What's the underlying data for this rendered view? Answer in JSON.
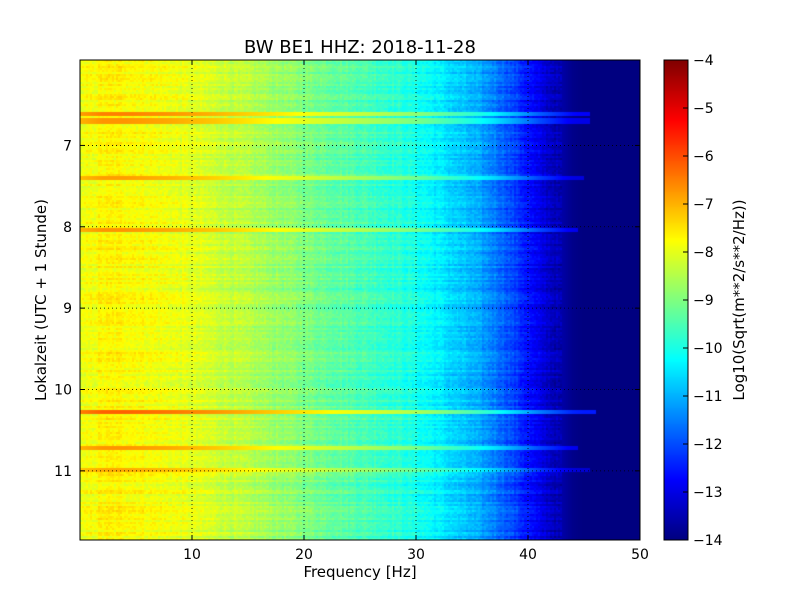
{
  "chart_data": {
    "type": "heatmap",
    "title": "BW BE1 HHZ: 2018-11-28",
    "xlabel": "Frequency [Hz]",
    "ylabel": "Lokalzeit (UTC + 1 Stunde)",
    "xlim": [
      0,
      50
    ],
    "ylim": [
      11.85,
      5.95
    ],
    "y_inverted": true,
    "x_ticks": [
      10,
      20,
      30,
      40,
      50
    ],
    "x_tick_labels": [
      "10",
      "20",
      "30",
      "40",
      "50"
    ],
    "y_ticks": [
      7,
      8,
      9,
      10,
      11
    ],
    "y_tick_labels": [
      "7",
      "8",
      "9",
      "10",
      "11"
    ],
    "grid": true,
    "grid_style": "dotted",
    "colormap": "jet",
    "colorbar": {
      "label": "Log10(Sqrt(m**2/s**2/Hz))",
      "range": [
        -14,
        -4
      ],
      "ticks": [
        -4,
        -5,
        -6,
        -7,
        -8,
        -9,
        -10,
        -11,
        -12,
        -13,
        -14
      ],
      "tick_labels": [
        "−4",
        "−5",
        "−6",
        "−7",
        "−8",
        "−9",
        "−10",
        "−11",
        "−12",
        "−13",
        "−14"
      ]
    },
    "frequency_profile": {
      "frequency_hz": [
        0,
        2,
        4,
        8,
        12,
        16,
        20,
        24,
        28,
        31,
        33,
        35,
        37,
        39,
        41,
        43,
        44,
        45,
        50
      ],
      "log10_amplitude": [
        -8.0,
        -7.7,
        -7.7,
        -7.9,
        -8.2,
        -8.6,
        -9.0,
        -9.4,
        -9.8,
        -10.2,
        -10.6,
        -11.0,
        -11.5,
        -12.2,
        -13.0,
        -13.6,
        -13.9,
        -14.0,
        -14.0
      ]
    },
    "high_amplitude_bands": [
      {
        "time": 6.62,
        "log10_amplitude_offset": 1.2,
        "max_frequency_hz": 45.5
      },
      {
        "time": 6.7,
        "log10_amplitude_offset": 1.0,
        "max_frequency_hz": 45.5
      },
      {
        "time": 7.4,
        "log10_amplitude_offset": 0.9,
        "max_frequency_hz": 45.0
      },
      {
        "time": 8.05,
        "log10_amplitude_offset": 1.0,
        "max_frequency_hz": 44.5
      },
      {
        "time": 10.27,
        "log10_amplitude_offset": 1.5,
        "max_frequency_hz": 46.0
      },
      {
        "time": 10.72,
        "log10_amplitude_offset": 1.0,
        "max_frequency_hz": 44.5
      },
      {
        "time": 11.0,
        "log10_amplitude_offset": 0.8,
        "max_frequency_hz": 45.5
      }
    ]
  }
}
